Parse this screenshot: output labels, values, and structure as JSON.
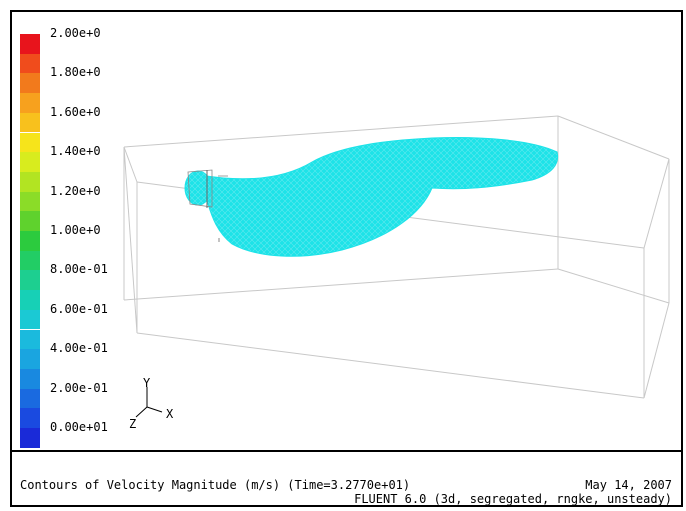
{
  "legend": {
    "labels": [
      "2.00e+0",
      "1.80e+0",
      "1.60e+0",
      "1.40e+0",
      "1.20e+0",
      "1.00e+0",
      "8.00e-01",
      "6.00e-01",
      "4.00e-01",
      "2.00e-01",
      "0.00e+01"
    ],
    "colors": [
      "#e8141c",
      "#f04c1c",
      "#f27a1c",
      "#f7a11e",
      "#f8c11d",
      "#f6e41b",
      "#d8ec1e",
      "#b2e422",
      "#8bdc28",
      "#5fd22d",
      "#2ccb3e",
      "#22cd65",
      "#1dcf90",
      "#17d0b6",
      "#1bc9d4",
      "#1bbadd",
      "#1aa5e0",
      "#1989e0",
      "#1a6ae0",
      "#1a4ae0",
      "#1a2ad8"
    ],
    "contour_color": "#1de3e8"
  },
  "triad": {
    "y": "Y",
    "x": "X",
    "z": "Z"
  },
  "info": {
    "title": "Contours of Velocity Magnitude (m/s)  (Time=3.2770e+01)",
    "date": "May 14, 2007",
    "solver": "FLUENT 6.0 (3d, segregated, rngke, unsteady)"
  }
}
